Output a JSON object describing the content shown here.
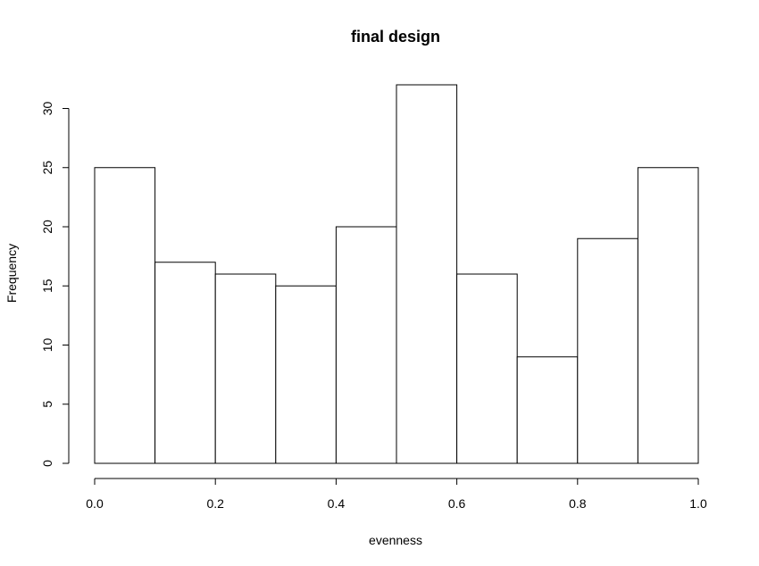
{
  "chart_data": {
    "type": "bar",
    "title": "final design",
    "xlabel": "evenness",
    "ylabel": "Frequency",
    "bins": [
      {
        "start": 0.0,
        "end": 0.1,
        "value": 25
      },
      {
        "start": 0.1,
        "end": 0.2,
        "value": 17
      },
      {
        "start": 0.2,
        "end": 0.3,
        "value": 16
      },
      {
        "start": 0.3,
        "end": 0.4,
        "value": 15
      },
      {
        "start": 0.4,
        "end": 0.5,
        "value": 20
      },
      {
        "start": 0.5,
        "end": 0.6,
        "value": 32
      },
      {
        "start": 0.6,
        "end": 0.7,
        "value": 16
      },
      {
        "start": 0.7,
        "end": 0.8,
        "value": 9
      },
      {
        "start": 0.8,
        "end": 0.9,
        "value": 19
      },
      {
        "start": 0.9,
        "end": 1.0,
        "value": 25
      }
    ],
    "xlim": [
      0,
      1
    ],
    "ylim": [
      0,
      32
    ],
    "x_ticks": [
      0.0,
      0.2,
      0.4,
      0.6,
      0.8,
      1.0
    ],
    "x_tick_labels": [
      "0.0",
      "0.2",
      "0.4",
      "0.6",
      "0.8",
      "1.0"
    ],
    "y_ticks": [
      0,
      5,
      10,
      15,
      20,
      25,
      30
    ],
    "y_tick_labels": [
      "0",
      "5",
      "10",
      "15",
      "20",
      "25",
      "30"
    ],
    "grid": false,
    "bar_fill": "#ffffff",
    "bar_stroke": "#000000"
  }
}
